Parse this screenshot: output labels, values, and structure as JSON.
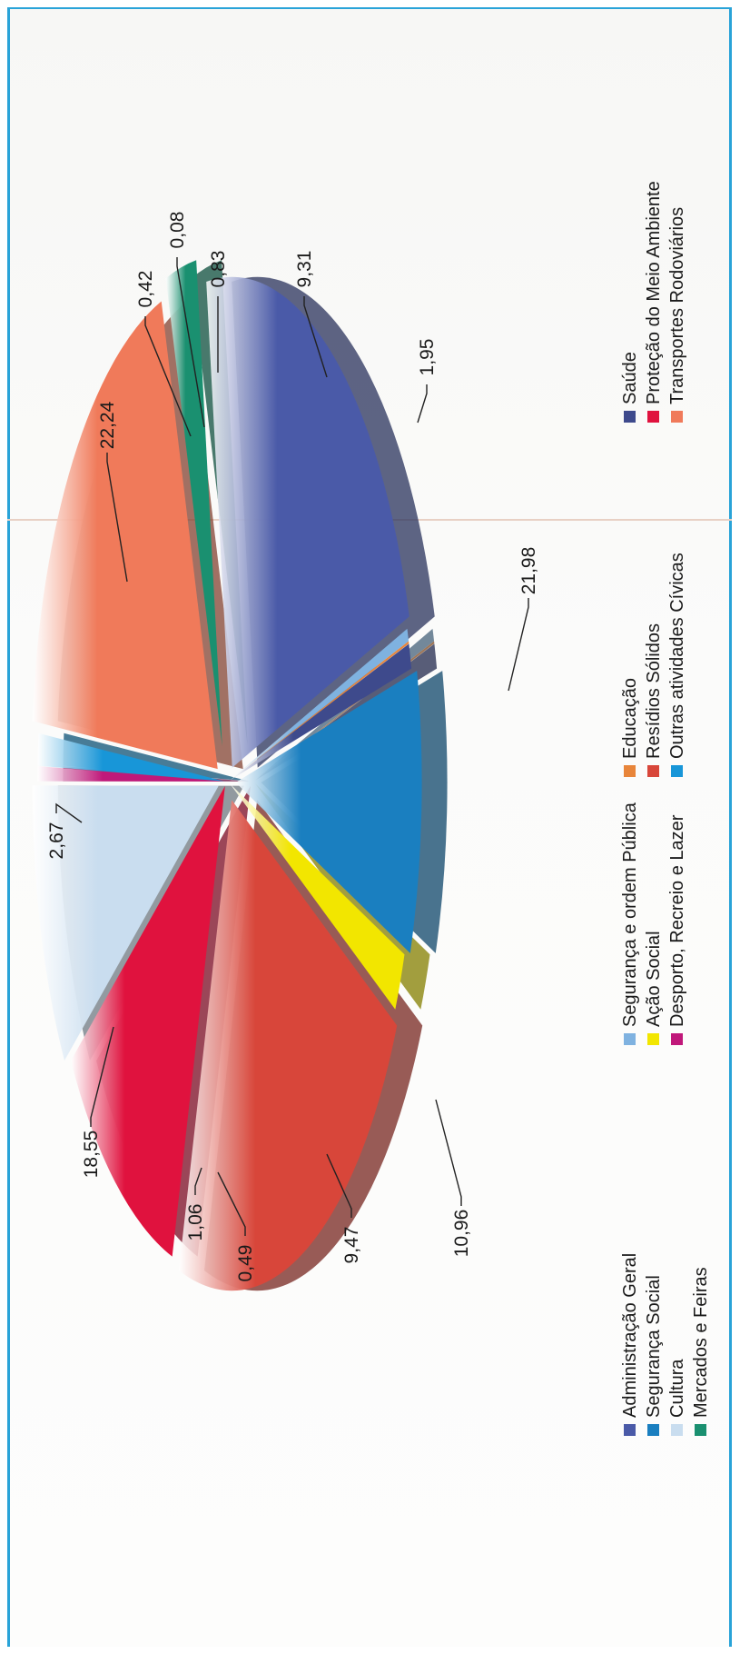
{
  "chart_data": {
    "type": "pie",
    "title": "",
    "value_format": "decimal comma",
    "slices": [
      {
        "name": "Administração Geral",
        "value": 22.24,
        "label": "22,24",
        "color": "#4a5aa8"
      },
      {
        "name": "Segurança e ordem Pública",
        "value": 0.42,
        "label": "0,42",
        "color": "#7fb2e0"
      },
      {
        "name": "Educação",
        "value": 0.08,
        "label": "0,08",
        "color": "#e8853a"
      },
      {
        "name": "Saúde",
        "value": 0.83,
        "label": "0,83",
        "color": "#3e4a8c"
      },
      {
        "name": "Segurança Social",
        "value": 9.31,
        "label": "9,31",
        "color": "#1a7fc0"
      },
      {
        "name": "Ação Social",
        "value": 1.95,
        "label": "1,95",
        "color": "#f2e600"
      },
      {
        "name": "Resídios Sólidos",
        "value": 21.98,
        "label": "21,98",
        "color": "#d8463a"
      },
      {
        "name": "Proteção do Meio Ambiente",
        "value": 10.96,
        "label": "10,96",
        "color": "#e0123e"
      },
      {
        "name": "Cultura",
        "value": 9.47,
        "label": "9,47",
        "color": "#c9ddef"
      },
      {
        "name": "Desporto, Recreio e Lazer",
        "value": 0.49,
        "label": "0,49",
        "color": "#c0187a"
      },
      {
        "name": "Outras atividades Cívicas",
        "value": 1.06,
        "label": "1,06",
        "color": "#1896d8"
      },
      {
        "name": "Transportes Rodoviários",
        "value": 18.55,
        "label": "18,55",
        "color": "#f07a5a"
      },
      {
        "name": "Mercados e Feiras",
        "value": 2.67,
        "label": "2,67",
        "color": "#1a9070"
      }
    ],
    "legend": {
      "placement": "bottom",
      "orientation": "rotated 90° counter-clockwise",
      "columns": [
        [
          "Administração Geral",
          "Segurança Social",
          "Cultura",
          "Mercados e Feiras"
        ],
        [
          "Segurança e ordem Pública",
          "Ação Social",
          "Desporto, Recreio e Lazer"
        ],
        [
          "Educação",
          "Resídios Sólidos",
          "Outras atividades Cívicas"
        ],
        [
          "Saúde",
          "Proteção do Meio Ambiente",
          "Transportes Rodoviários"
        ]
      ]
    },
    "style": "3D exploded pie, rotated page"
  }
}
